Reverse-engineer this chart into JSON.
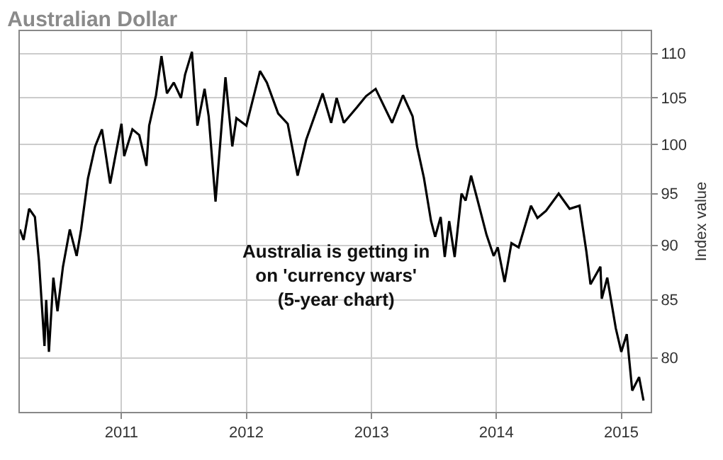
{
  "chart_data": {
    "type": "line",
    "title": "Australian Dollar",
    "ylabel": "Index value",
    "annotations": [
      "Australia is getting in\non 'currency wars'\n(5-year chart)"
    ],
    "x": [
      "2010-03-10",
      "2010-03-21",
      "2010-04-06",
      "2010-04-23",
      "2010-05-05",
      "2010-05-21",
      "2010-05-26",
      "2010-06-03",
      "2010-06-16",
      "2010-06-28",
      "2010-07-14",
      "2010-08-03",
      "2010-08-23",
      "2010-09-05",
      "2010-09-25",
      "2010-10-16",
      "2010-11-05",
      "2010-11-29",
      "2011-01-01",
      "2011-01-09",
      "2011-02-02",
      "2011-02-22",
      "2011-03-15",
      "2011-03-23",
      "2011-04-12",
      "2011-04-28",
      "2011-05-14",
      "2011-06-03",
      "2011-06-24",
      "2011-07-06",
      "2011-07-26",
      "2011-08-11",
      "2011-09-01",
      "2011-09-13",
      "2011-10-03",
      "2011-11-01",
      "2011-11-21",
      "2011-12-03",
      "2012-01-01",
      "2012-02-10",
      "2012-03-01",
      "2012-04-03",
      "2012-05-01",
      "2012-05-30",
      "2012-06-24",
      "2012-08-11",
      "2012-09-05",
      "2012-09-21",
      "2012-10-12",
      "2012-11-20",
      "2012-12-03",
      "2012-12-16",
      "2013-01-13",
      "2013-03-02",
      "2013-04-03",
      "2013-05-01",
      "2013-05-14",
      "2013-06-03",
      "2013-06-24",
      "2013-07-06",
      "2013-07-22",
      "2013-08-03",
      "2013-08-16",
      "2013-09-01",
      "2013-09-21",
      "2013-10-03",
      "2013-10-19",
      "2013-11-05",
      "2013-12-03",
      "2013-12-24",
      "2014-01-05",
      "2014-01-25",
      "2014-02-14",
      "2014-03-07",
      "2014-04-12",
      "2014-05-01",
      "2014-05-26",
      "2014-07-02",
      "2014-08-03",
      "2014-09-01",
      "2014-09-21",
      "2014-10-03",
      "2014-11-01",
      "2014-11-05",
      "2014-11-21",
      "2014-12-16",
      "2015-01-01",
      "2015-01-17",
      "2015-02-02",
      "2015-02-22",
      "2015-03-07"
    ],
    "series": [
      {
        "color": "#000000",
        "values": [
          91.5,
          90.5,
          93.5,
          92.7,
          88.5,
          81,
          85,
          80.5,
          87,
          84,
          88,
          91.5,
          89,
          91.5,
          96.5,
          99.8,
          101.6,
          96,
          102.2,
          98.8,
          101.6,
          101,
          97.8,
          102,
          105.3,
          109.7,
          105.5,
          106.7,
          105,
          107.6,
          110.2,
          102,
          106,
          103,
          94.2,
          107.3,
          99.8,
          102.8,
          102,
          108,
          106.7,
          103.3,
          102.2,
          96.8,
          100.5,
          105.5,
          102.3,
          105,
          102.3,
          104,
          104.6,
          105.2,
          106,
          102.3,
          105.3,
          103,
          99.8,
          96.6,
          92.3,
          90.8,
          92.7,
          88.9,
          92.3,
          88.9,
          95,
          94.3,
          96.8,
          94.6,
          91,
          89,
          89.8,
          86.6,
          90.2,
          89.8,
          93.8,
          92.6,
          93.3,
          95,
          93.5,
          93.8,
          89.4,
          86.4,
          88,
          85.1,
          87,
          82.5,
          80.5,
          82,
          77.3,
          78.4,
          76.5
        ]
      }
    ],
    "xlim": [
      "2010-03-10",
      "2015-03-28"
    ],
    "xticks": [
      {
        "value": "2011-01-01",
        "label": "2011"
      },
      {
        "value": "2012-01-01",
        "label": "2012"
      },
      {
        "value": "2013-01-01",
        "label": "2013"
      },
      {
        "value": "2014-01-01",
        "label": "2014"
      },
      {
        "value": "2015-01-01",
        "label": "2015"
      }
    ],
    "ylim": [
      75.6,
      112.6
    ],
    "yticks": [
      80,
      85,
      90,
      95,
      100,
      105,
      110
    ],
    "log": "y",
    "grid": true,
    "marker": "none",
    "line_style": "solid"
  }
}
